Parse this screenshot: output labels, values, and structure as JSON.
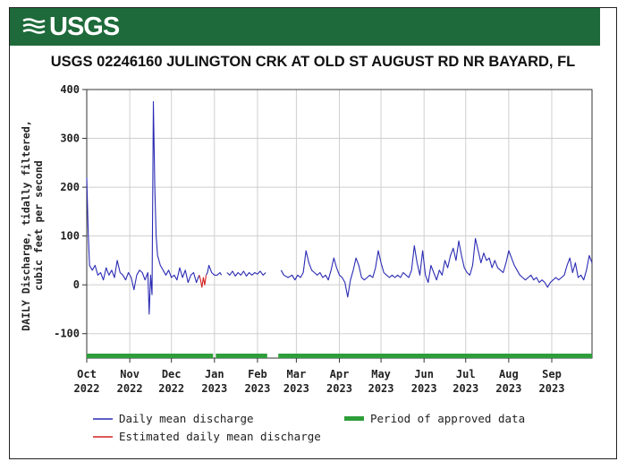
{
  "brand": {
    "name": "USGS"
  },
  "chart_data": {
    "type": "line",
    "title": "USGS 02246160 JULINGTON CRK AT OLD ST AUGUST RD NR BAYARD, FL",
    "ylabel_line1": "DAILY Discharge, tidally filtered,",
    "ylabel_line2": "cubic feet per second",
    "ylim": [
      -150,
      400
    ],
    "yticks": [
      400,
      300,
      200,
      100,
      0,
      -100
    ],
    "xlim": [
      "2022-10-01",
      "2023-09-30"
    ],
    "xticks": [
      {
        "month": "Oct",
        "year": "2022"
      },
      {
        "month": "Nov",
        "year": "2022"
      },
      {
        "month": "Dec",
        "year": "2022"
      },
      {
        "month": "Jan",
        "year": "2023"
      },
      {
        "month": "Feb",
        "year": "2023"
      },
      {
        "month": "Mar",
        "year": "2023"
      },
      {
        "month": "Apr",
        "year": "2023"
      },
      {
        "month": "May",
        "year": "2023"
      },
      {
        "month": "Jun",
        "year": "2023"
      },
      {
        "month": "Jul",
        "year": "2023"
      },
      {
        "month": "Aug",
        "year": "2023"
      },
      {
        "month": "Sep",
        "year": "2023"
      }
    ],
    "grid": true,
    "legend_position": "bottom",
    "series": [
      {
        "name": "Daily mean discharge",
        "color": "#2b2bb4",
        "segments": [
          [
            [
              "2022-10-01",
              220
            ],
            [
              "2022-10-02",
              110
            ],
            [
              "2022-10-03",
              40
            ],
            [
              "2022-10-05",
              30
            ],
            [
              "2022-10-07",
              40
            ],
            [
              "2022-10-09",
              20
            ],
            [
              "2022-10-11",
              25
            ],
            [
              "2022-10-13",
              10
            ],
            [
              "2022-10-15",
              35
            ],
            [
              "2022-10-17",
              20
            ],
            [
              "2022-10-19",
              30
            ],
            [
              "2022-10-21",
              15
            ],
            [
              "2022-10-23",
              50
            ],
            [
              "2022-10-25",
              25
            ],
            [
              "2022-10-27",
              20
            ],
            [
              "2022-10-29",
              10
            ],
            [
              "2022-10-31",
              25
            ],
            [
              "2022-11-02",
              15
            ],
            [
              "2022-11-04",
              -10
            ],
            [
              "2022-11-06",
              20
            ],
            [
              "2022-11-08",
              30
            ],
            [
              "2022-11-10",
              25
            ],
            [
              "2022-11-12",
              10
            ],
            [
              "2022-11-14",
              25
            ],
            [
              "2022-11-15",
              -60
            ],
            [
              "2022-11-16",
              20
            ],
            [
              "2022-11-17",
              -20
            ],
            [
              "2022-11-18",
              375
            ],
            [
              "2022-11-19",
              200
            ],
            [
              "2022-11-20",
              100
            ],
            [
              "2022-11-21",
              60
            ],
            [
              "2022-11-23",
              40
            ],
            [
              "2022-11-25",
              30
            ],
            [
              "2022-11-27",
              20
            ],
            [
              "2022-11-29",
              30
            ],
            [
              "2022-12-01",
              15
            ],
            [
              "2022-12-03",
              20
            ],
            [
              "2022-12-05",
              10
            ],
            [
              "2022-12-07",
              35
            ],
            [
              "2022-12-09",
              15
            ],
            [
              "2022-12-11",
              30
            ],
            [
              "2022-12-13",
              5
            ],
            [
              "2022-12-15",
              20
            ],
            [
              "2022-12-17",
              25
            ],
            [
              "2022-12-19",
              5
            ],
            [
              "2022-12-21",
              20
            ]
          ],
          [
            [
              "2022-12-26",
              20
            ],
            [
              "2022-12-27",
              25
            ],
            [
              "2022-12-28",
              40
            ],
            [
              "2022-12-30",
              25
            ],
            [
              "2023-01-01",
              20
            ],
            [
              "2023-01-03",
              20
            ],
            [
              "2023-01-05",
              25
            ],
            [
              "2023-01-06",
              20
            ]
          ],
          [
            [
              "2023-01-10",
              25
            ],
            [
              "2023-01-12",
              20
            ],
            [
              "2023-01-14",
              28
            ],
            [
              "2023-01-16",
              18
            ],
            [
              "2023-01-18",
              25
            ],
            [
              "2023-01-20",
              20
            ],
            [
              "2023-01-22",
              28
            ],
            [
              "2023-01-24",
              18
            ],
            [
              "2023-01-26",
              25
            ],
            [
              "2023-01-28",
              20
            ],
            [
              "2023-01-30",
              25
            ],
            [
              "2023-02-01",
              22
            ],
            [
              "2023-02-03",
              28
            ],
            [
              "2023-02-05",
              20
            ],
            [
              "2023-02-07",
              25
            ]
          ],
          [
            [
              "2023-02-18",
              30
            ],
            [
              "2023-02-20",
              20
            ],
            [
              "2023-02-23",
              15
            ],
            [
              "2023-02-26",
              20
            ],
            [
              "2023-02-28",
              10
            ],
            [
              "2023-03-02",
              20
            ],
            [
              "2023-03-04",
              15
            ],
            [
              "2023-03-06",
              25
            ],
            [
              "2023-03-08",
              70
            ],
            [
              "2023-03-10",
              45
            ],
            [
              "2023-03-12",
              30
            ],
            [
              "2023-03-14",
              25
            ],
            [
              "2023-03-16",
              20
            ],
            [
              "2023-03-18",
              25
            ],
            [
              "2023-03-20",
              15
            ],
            [
              "2023-03-22",
              20
            ],
            [
              "2023-03-24",
              10
            ],
            [
              "2023-03-26",
              30
            ],
            [
              "2023-03-28",
              55
            ],
            [
              "2023-03-30",
              35
            ],
            [
              "2023-04-01",
              20
            ],
            [
              "2023-04-03",
              15
            ],
            [
              "2023-04-05",
              5
            ],
            [
              "2023-04-07",
              -25
            ],
            [
              "2023-04-09",
              10
            ],
            [
              "2023-04-11",
              30
            ],
            [
              "2023-04-13",
              55
            ],
            [
              "2023-04-15",
              40
            ],
            [
              "2023-04-17",
              15
            ],
            [
              "2023-04-19",
              10
            ],
            [
              "2023-04-21",
              15
            ],
            [
              "2023-04-23",
              20
            ],
            [
              "2023-04-25",
              15
            ],
            [
              "2023-04-27",
              35
            ],
            [
              "2023-04-29",
              70
            ],
            [
              "2023-05-01",
              45
            ],
            [
              "2023-05-03",
              25
            ],
            [
              "2023-05-05",
              20
            ],
            [
              "2023-05-07",
              15
            ],
            [
              "2023-05-09",
              20
            ],
            [
              "2023-05-11",
              15
            ],
            [
              "2023-05-13",
              20
            ],
            [
              "2023-05-15",
              15
            ],
            [
              "2023-05-17",
              25
            ],
            [
              "2023-05-19",
              20
            ],
            [
              "2023-05-21",
              15
            ],
            [
              "2023-05-23",
              30
            ],
            [
              "2023-05-25",
              80
            ],
            [
              "2023-05-27",
              45
            ],
            [
              "2023-05-29",
              20
            ],
            [
              "2023-05-31",
              70
            ],
            [
              "2023-06-02",
              20
            ],
            [
              "2023-06-04",
              5
            ],
            [
              "2023-06-06",
              40
            ],
            [
              "2023-06-08",
              25
            ],
            [
              "2023-06-10",
              10
            ],
            [
              "2023-06-12",
              30
            ],
            [
              "2023-06-14",
              20
            ],
            [
              "2023-06-16",
              50
            ],
            [
              "2023-06-18",
              35
            ],
            [
              "2023-06-20",
              60
            ],
            [
              "2023-06-22",
              75
            ],
            [
              "2023-06-24",
              50
            ],
            [
              "2023-06-26",
              90
            ],
            [
              "2023-06-28",
              60
            ],
            [
              "2023-06-30",
              35
            ],
            [
              "2023-07-02",
              25
            ],
            [
              "2023-07-04",
              20
            ],
            [
              "2023-07-06",
              40
            ],
            [
              "2023-07-08",
              95
            ],
            [
              "2023-07-10",
              70
            ],
            [
              "2023-07-12",
              45
            ],
            [
              "2023-07-14",
              65
            ],
            [
              "2023-07-16",
              50
            ],
            [
              "2023-07-18",
              55
            ],
            [
              "2023-07-20",
              35
            ],
            [
              "2023-07-22",
              50
            ],
            [
              "2023-07-24",
              35
            ],
            [
              "2023-07-26",
              30
            ],
            [
              "2023-07-28",
              25
            ],
            [
              "2023-07-30",
              45
            ],
            [
              "2023-08-01",
              70
            ],
            [
              "2023-08-03",
              55
            ],
            [
              "2023-08-05",
              40
            ],
            [
              "2023-08-07",
              30
            ],
            [
              "2023-08-09",
              20
            ],
            [
              "2023-08-11",
              15
            ],
            [
              "2023-08-13",
              10
            ],
            [
              "2023-08-15",
              15
            ],
            [
              "2023-08-17",
              20
            ],
            [
              "2023-08-19",
              10
            ],
            [
              "2023-08-21",
              15
            ],
            [
              "2023-08-23",
              5
            ],
            [
              "2023-08-25",
              10
            ],
            [
              "2023-08-27",
              5
            ],
            [
              "2023-08-29",
              -5
            ],
            [
              "2023-08-31",
              5
            ],
            [
              "2023-09-02",
              10
            ],
            [
              "2023-09-04",
              15
            ],
            [
              "2023-09-06",
              10
            ],
            [
              "2023-09-08",
              15
            ],
            [
              "2023-09-10",
              20
            ],
            [
              "2023-09-12",
              40
            ],
            [
              "2023-09-14",
              55
            ],
            [
              "2023-09-16",
              25
            ],
            [
              "2023-09-18",
              45
            ],
            [
              "2023-09-20",
              15
            ],
            [
              "2023-09-22",
              20
            ],
            [
              "2023-09-24",
              10
            ],
            [
              "2023-09-26",
              30
            ],
            [
              "2023-09-28",
              60
            ],
            [
              "2023-09-30",
              45
            ]
          ]
        ]
      },
      {
        "name": "Estimated daily mean discharge",
        "color": "#d42020",
        "segments": [
          [
            [
              "2022-12-21",
              20
            ],
            [
              "2022-12-22",
              10
            ],
            [
              "2022-12-23",
              -5
            ],
            [
              "2022-12-24",
              15
            ],
            [
              "2022-12-25",
              0
            ],
            [
              "2022-12-26",
              20
            ]
          ]
        ]
      }
    ],
    "approved_periods": {
      "name": "Period of approved data",
      "color": "#2e9e3a",
      "ranges": [
        [
          "2022-10-01",
          "2022-12-31"
        ],
        [
          "2023-01-02",
          "2023-02-08"
        ],
        [
          "2023-02-16",
          "2023-09-30"
        ]
      ]
    }
  }
}
